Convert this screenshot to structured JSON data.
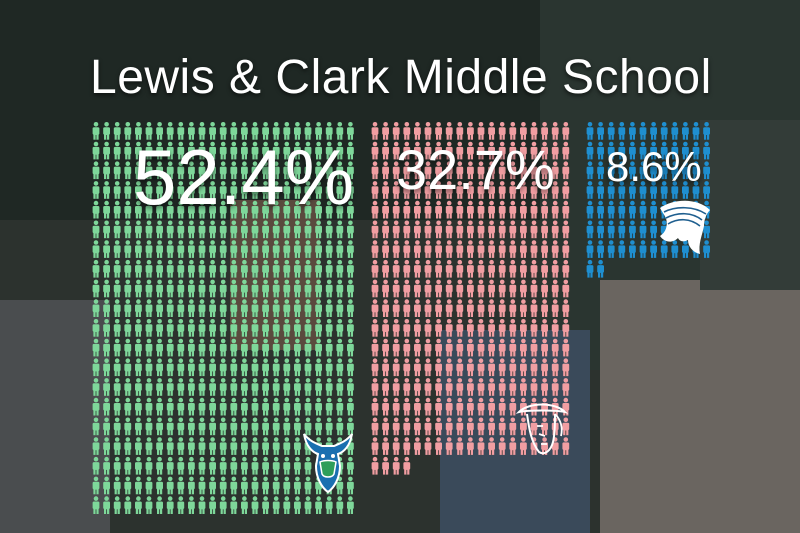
{
  "title": "Lewis & Clark Middle School",
  "colors": {
    "group_0": "#7ed79a",
    "group_1": "#f19ea2",
    "group_2": "#1f8fd0",
    "background_overlay": "#2a2f2c"
  },
  "chart_data": {
    "type": "pictograph",
    "title": "Lewis & Clark Middle School",
    "unit": "percent of students",
    "icon": "person-icon",
    "series": [
      {
        "label": "52.4%",
        "value": 52.4,
        "color": "#7ed79a",
        "logo": "bull-mascot-icon"
      },
      {
        "label": "32.7%",
        "value": 32.7,
        "color": "#f19ea2",
        "logo": "colonial-head-mascot-icon"
      },
      {
        "label": "8.6%",
        "value": 8.6,
        "color": "#1f8fd0",
        "logo": "native-headdress-mascot-icon"
      }
    ]
  }
}
